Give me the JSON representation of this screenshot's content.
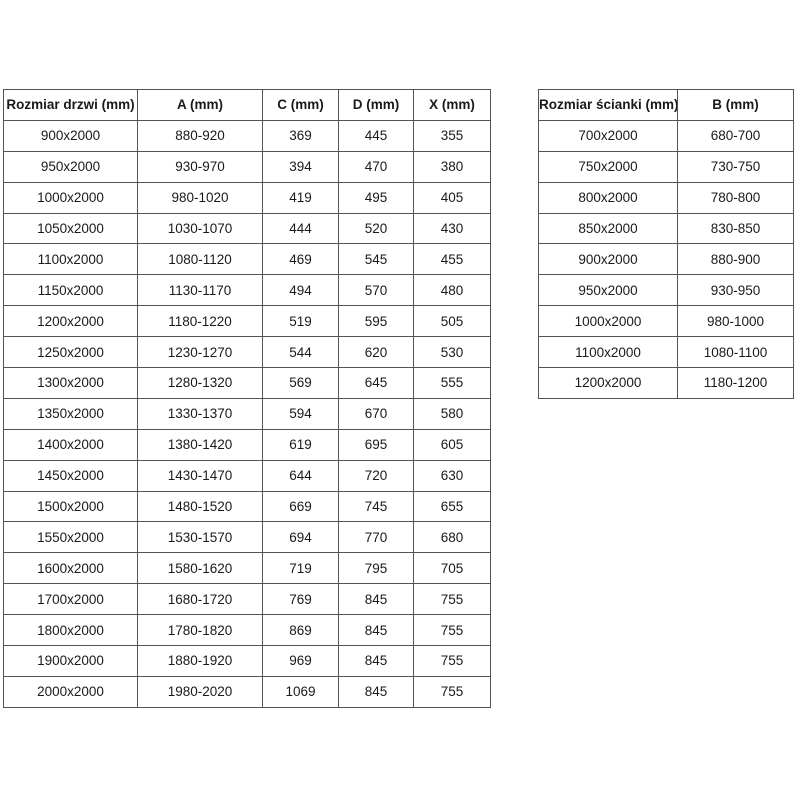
{
  "doors_table": {
    "headers": [
      "Rozmiar drzwi (mm)",
      "A (mm)",
      "C (mm)",
      "D (mm)",
      "X (mm)"
    ],
    "rows": [
      [
        "900x2000",
        "880-920",
        "369",
        "445",
        "355"
      ],
      [
        "950x2000",
        "930-970",
        "394",
        "470",
        "380"
      ],
      [
        "1000x2000",
        "980-1020",
        "419",
        "495",
        "405"
      ],
      [
        "1050x2000",
        "1030-1070",
        "444",
        "520",
        "430"
      ],
      [
        "1100x2000",
        "1080-1120",
        "469",
        "545",
        "455"
      ],
      [
        "1150x2000",
        "1130-1170",
        "494",
        "570",
        "480"
      ],
      [
        "1200x2000",
        "1180-1220",
        "519",
        "595",
        "505"
      ],
      [
        "1250x2000",
        "1230-1270",
        "544",
        "620",
        "530"
      ],
      [
        "1300x2000",
        "1280-1320",
        "569",
        "645",
        "555"
      ],
      [
        "1350x2000",
        "1330-1370",
        "594",
        "670",
        "580"
      ],
      [
        "1400x2000",
        "1380-1420",
        "619",
        "695",
        "605"
      ],
      [
        "1450x2000",
        "1430-1470",
        "644",
        "720",
        "630"
      ],
      [
        "1500x2000",
        "1480-1520",
        "669",
        "745",
        "655"
      ],
      [
        "1550x2000",
        "1530-1570",
        "694",
        "770",
        "680"
      ],
      [
        "1600x2000",
        "1580-1620",
        "719",
        "795",
        "705"
      ],
      [
        "1700x2000",
        "1680-1720",
        "769",
        "845",
        "755"
      ],
      [
        "1800x2000",
        "1780-1820",
        "869",
        "845",
        "755"
      ],
      [
        "1900x2000",
        "1880-1920",
        "969",
        "845",
        "755"
      ],
      [
        "2000x2000",
        "1980-2020",
        "1069",
        "845",
        "755"
      ]
    ]
  },
  "walls_table": {
    "headers": [
      "Rozmiar ścianki (mm)",
      "B (mm)"
    ],
    "rows": [
      [
        "700x2000",
        "680-700"
      ],
      [
        "750x2000",
        "730-750"
      ],
      [
        "800x2000",
        "780-800"
      ],
      [
        "850x2000",
        "830-850"
      ],
      [
        "900x2000",
        "880-900"
      ],
      [
        "950x2000",
        "930-950"
      ],
      [
        "1000x2000",
        "980-1000"
      ],
      [
        "1100x2000",
        "1080-1100"
      ],
      [
        "1200x2000",
        "1180-1200"
      ]
    ]
  },
  "colors": {
    "border": "#545454",
    "text": "#1a1a1a",
    "background": "#ffffff"
  }
}
